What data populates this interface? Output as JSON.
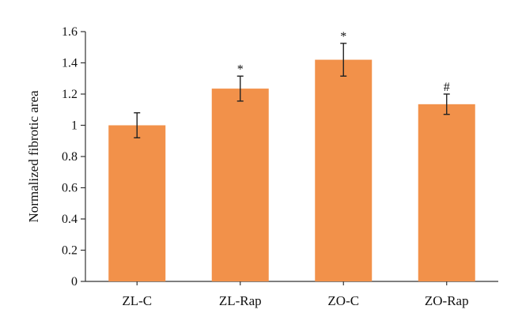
{
  "chart_data": {
    "type": "bar",
    "title": "",
    "xlabel": "",
    "ylabel": "Normalized fibrotic area",
    "categories": [
      "ZL-C",
      "ZL-Rap",
      "ZO-C",
      "ZO-Rap"
    ],
    "values": [
      1.0,
      1.235,
      1.42,
      1.135
    ],
    "error": [
      0.08,
      0.08,
      0.105,
      0.065
    ],
    "annotations": [
      "",
      "*",
      "*",
      "#"
    ],
    "ylim": [
      0,
      1.6
    ],
    "yticks": [
      0,
      0.2,
      0.4,
      0.6,
      0.8,
      1,
      1.2,
      1.4,
      1.6
    ],
    "ytick_labels": [
      "0",
      "0.2",
      "0.4",
      "0.6",
      "0.8",
      "1",
      "1.2",
      "1.4",
      "1.6"
    ],
    "grid": false,
    "bar_color": "#F2914A"
  }
}
